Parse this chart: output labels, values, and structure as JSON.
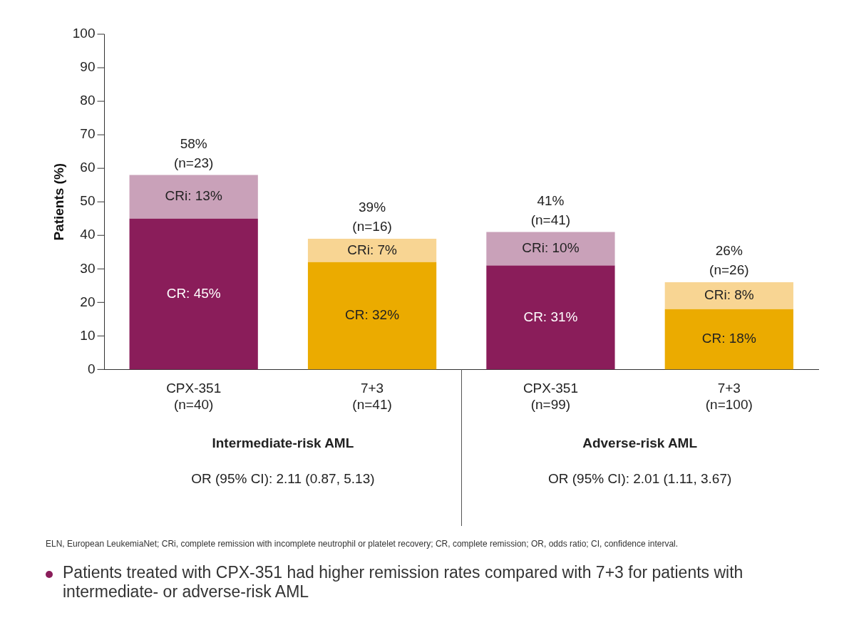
{
  "chart_data": {
    "type": "bar",
    "stacked": true,
    "ylabel": "Patients (%)",
    "categories": [
      "CPX-351\n(n=40)",
      "7+3\n(n=41)",
      "CPX-351\n(n=99)",
      "7+3\n(n=100)"
    ],
    "series": [
      {
        "colors": [
          "#8a1d5a",
          "#ebab00",
          "#8a1d5a",
          "#ebab00"
        ],
        "values": [
          45,
          32,
          31,
          18
        ],
        "value_labels": [
          "CR: 45%",
          "CR: 32%",
          "CR: 31%",
          "CR: 18%"
        ]
      },
      {
        "colors": [
          "#c9a1b9",
          "#f8d593",
          "#c9a1b9",
          "#f8d593"
        ],
        "values": [
          13,
          7,
          10,
          8
        ],
        "value_labels": [
          "CRi: 13%",
          "CRi: 7%",
          "CRi: 10%",
          "CRi: 8%"
        ]
      }
    ],
    "totals": [
      "58%\n(n=23)",
      "39%\n(n=16)",
      "41%\n(n=41)",
      "26%\n(n=26)"
    ],
    "ylim": [
      0,
      100
    ],
    "yticks": [
      0,
      10,
      20,
      30,
      40,
      50,
      60,
      70,
      80,
      90,
      100
    ],
    "grid": false,
    "legend": false,
    "annotations": [
      "Intermediate-risk AML",
      "Adverse-risk AML",
      "OR (95% CI): 2.11 (0.87, 5.13)",
      "OR (95% CI): 2.01 (1.11, 3.67)",
      "ELN, European LeukemiaNet; CRi, complete remission with incomplete neutrophil or platelet recovery; CR, complete remission; OR, odds ratio; CI, confidence interval.",
      "Patients treated with CPX-351 had higher remission rates compared with 7+3 for patients with intermediate- or adverse-risk AML"
    ]
  }
}
